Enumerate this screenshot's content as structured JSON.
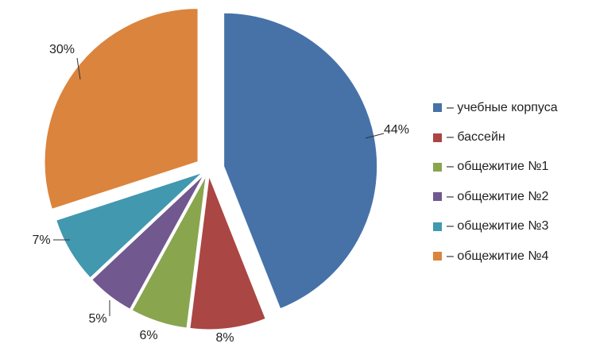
{
  "chart_data": {
    "type": "pie",
    "exploded": true,
    "legend_position": "right",
    "slices": [
      {
        "name": "– учебные корпуса",
        "value": 44,
        "label": "44%",
        "color": "#4672A8"
      },
      {
        "name": "– бассейн",
        "value": 8,
        "label": "8%",
        "color": "#AA4643"
      },
      {
        "name": "– общежитие №1",
        "value": 6,
        "label": "6%",
        "color": "#89A54E"
      },
      {
        "name": "– общежитие №2",
        "value": 5,
        "label": "5%",
        "color": "#71588F"
      },
      {
        "name": "– общежитие №3",
        "value": 7,
        "label": "7%",
        "color": "#4198AF"
      },
      {
        "name": "– общежитие №4",
        "value": 30,
        "label": "30%",
        "color": "#DB843D"
      }
    ]
  }
}
